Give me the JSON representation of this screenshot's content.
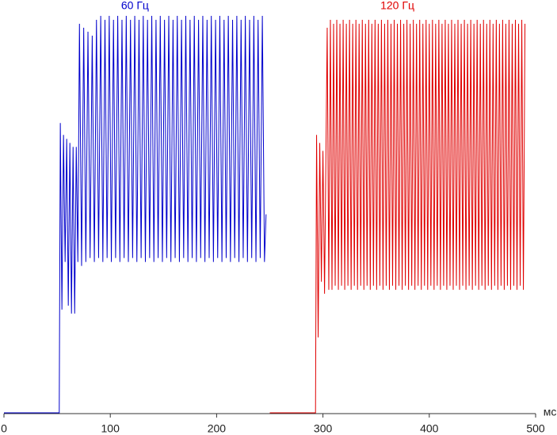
{
  "chart_data": {
    "type": "line",
    "xlabel": "мс",
    "xlim": [
      0,
      500
    ],
    "xticks": [
      0,
      100,
      200,
      300,
      400,
      500
    ],
    "ylim": [
      0,
      100
    ],
    "series": [
      {
        "name": "60 Гц",
        "color": "#0000cc",
        "x": [
          0,
          52,
          53,
          54.5,
          56,
          57.5,
          59,
          60.5,
          62,
          63.5,
          65,
          66.5,
          68,
          69.5,
          71,
          73,
          75,
          77,
          79,
          81,
          83,
          85,
          87,
          89,
          91,
          93,
          95,
          97,
          99,
          101,
          103,
          105,
          107,
          109,
          111,
          113,
          115,
          117,
          119,
          121,
          123,
          125,
          127,
          129,
          131,
          133,
          135,
          137,
          139,
          141,
          143,
          145,
          147,
          149,
          151,
          153,
          155,
          157,
          159,
          161,
          163,
          165,
          167,
          169,
          171,
          173,
          175,
          177,
          179,
          181,
          183,
          185,
          187,
          189,
          191,
          193,
          195,
          197,
          199,
          201,
          203,
          205,
          207,
          209,
          211,
          213,
          215,
          217,
          219,
          221,
          223,
          225,
          227,
          229,
          231,
          233,
          235,
          237,
          239,
          241,
          243,
          245,
          246.5
        ],
        "values": [
          0,
          0,
          73,
          26,
          70,
          38,
          69,
          27,
          68,
          25,
          67,
          25,
          67,
          38,
          98,
          37,
          97,
          38,
          96,
          39,
          95,
          38,
          99,
          39,
          100,
          38,
          99,
          39,
          100,
          38,
          99,
          39,
          100,
          38,
          99,
          39,
          100,
          38,
          99,
          39,
          100,
          38,
          99,
          39,
          100,
          38,
          99,
          39,
          100,
          38,
          99,
          39,
          100,
          38,
          99,
          39,
          100,
          38,
          99,
          39,
          100,
          38,
          99,
          39,
          100,
          38,
          99,
          39,
          100,
          38,
          99,
          39,
          100,
          38,
          99,
          39,
          100,
          38,
          99,
          39,
          100,
          38,
          99,
          39,
          100,
          38,
          99,
          39,
          100,
          38,
          99,
          39,
          100,
          38,
          99,
          39,
          100,
          38,
          99,
          39,
          100,
          38,
          50
        ]
      },
      {
        "name": "120 Гц",
        "color": "#e00000",
        "x": [
          250,
          293,
          294,
          295.5,
          297,
          298.5,
          300,
          301.5,
          304,
          305.5,
          307,
          308.5,
          310,
          311.5,
          313,
          314.5,
          316,
          317.5,
          319,
          320.5,
          322,
          323.5,
          325,
          326.5,
          328,
          329.5,
          331,
          332.5,
          334,
          335.5,
          337,
          338.5,
          340,
          341.5,
          343,
          344.5,
          346,
          347.5,
          349,
          350.5,
          352,
          353.5,
          355,
          356.5,
          358,
          359.5,
          361,
          362.5,
          364,
          365.5,
          367,
          368.5,
          370,
          371.5,
          373,
          374.5,
          376,
          377.5,
          379,
          380.5,
          382,
          383.5,
          385,
          386.5,
          388,
          389.5,
          391,
          392.5,
          394,
          395.5,
          397,
          398.5,
          400,
          401.5,
          403,
          404.5,
          406,
          407.5,
          409,
          410.5,
          412,
          413.5,
          415,
          416.5,
          418,
          419.5,
          421,
          422.5,
          424,
          425.5,
          427,
          428.5,
          430,
          431.5,
          433,
          434.5,
          436,
          437.5,
          439,
          440.5,
          442,
          443.5,
          445,
          446.5,
          448,
          449.5,
          451,
          452.5,
          454,
          455.5,
          457,
          458.5,
          460,
          461.5,
          463,
          464.5,
          466,
          467.5,
          469,
          470.5,
          472,
          473.5,
          475,
          476.5,
          478,
          479.5,
          481,
          482.5,
          484,
          485.5,
          487,
          488.5,
          490
        ],
        "values": [
          0,
          0,
          70,
          19,
          68,
          33,
          66,
          30,
          97,
          31,
          99,
          31,
          98,
          32,
          99,
          31,
          98,
          32,
          99,
          31,
          98,
          32,
          99,
          31,
          98,
          32,
          99,
          31,
          98,
          32,
          99,
          31,
          98,
          32,
          99,
          31,
          98,
          32,
          99,
          31,
          98,
          32,
          99,
          31,
          98,
          32,
          99,
          31,
          98,
          32,
          99,
          31,
          98,
          32,
          99,
          31,
          98,
          32,
          99,
          31,
          98,
          32,
          99,
          31,
          98,
          32,
          99,
          31,
          98,
          32,
          99,
          31,
          98,
          32,
          99,
          31,
          98,
          32,
          99,
          31,
          98,
          32,
          99,
          31,
          98,
          32,
          99,
          31,
          98,
          32,
          99,
          31,
          98,
          32,
          99,
          31,
          98,
          32,
          99,
          31,
          98,
          32,
          99,
          31,
          98,
          32,
          99,
          31,
          98,
          32,
          99,
          31,
          98,
          32,
          99,
          31,
          98,
          32,
          99,
          31,
          98,
          32,
          99,
          31,
          98,
          32,
          99,
          31,
          98,
          32,
          99,
          31,
          98
        ]
      }
    ]
  }
}
